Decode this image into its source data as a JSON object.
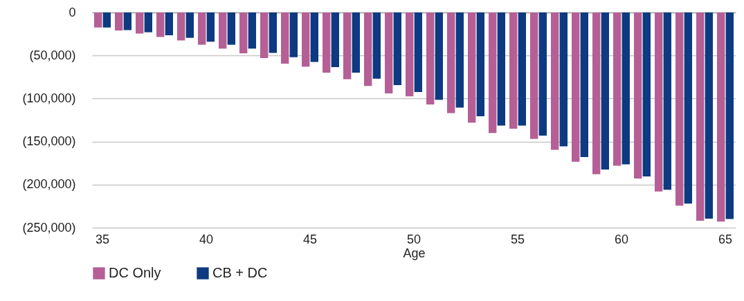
{
  "chart_data": {
    "type": "bar",
    "xlabel": "Age",
    "categories": [
      "35",
      null,
      null,
      null,
      null,
      "40",
      null,
      null,
      null,
      null,
      "45",
      null,
      null,
      null,
      null,
      "50",
      null,
      null,
      null,
      null,
      "55",
      null,
      null,
      null,
      null,
      "60",
      null,
      null,
      null,
      null,
      "65"
    ],
    "series": [
      {
        "name": "DC Only",
        "color": "#b55f96",
        "values": [
          -17500,
          -21000,
          -24500,
          -28500,
          -32500,
          -37500,
          -42000,
          -47500,
          -53000,
          -59500,
          -63000,
          -70000,
          -77500,
          -85500,
          -94000,
          -97500,
          -107000,
          -117000,
          -128000,
          -140000,
          -135000,
          -147000,
          -159500,
          -173500,
          -188000,
          -178000,
          -193000,
          -208000,
          -224500,
          -242000,
          -243000
        ]
      },
      {
        "name": "CB + DC",
        "color": "#0d3a80",
        "values": [
          -17500,
          -20500,
          -23000,
          -26500,
          -29500,
          -34000,
          -37500,
          -42000,
          -47000,
          -52000,
          -57500,
          -63500,
          -70000,
          -77000,
          -84500,
          -92500,
          -101500,
          -110500,
          -120500,
          -131500,
          -131500,
          -143000,
          -155500,
          -168000,
          -182500,
          -176500,
          -190500,
          -206000,
          -222000,
          -239500,
          -240000
        ]
      }
    ],
    "ylim": [
      -250000,
      0
    ],
    "yticks": [
      {
        "value": -250000,
        "label": "(250,000)"
      },
      {
        "value": -200000,
        "label": "(200,000)"
      },
      {
        "value": -150000,
        "label": "(150,000)"
      },
      {
        "value": -100000,
        "label": "(100,000)"
      },
      {
        "value": -50000,
        "label": "(50,000)"
      },
      0
    ],
    "grid": "y",
    "legend": "bottom"
  }
}
